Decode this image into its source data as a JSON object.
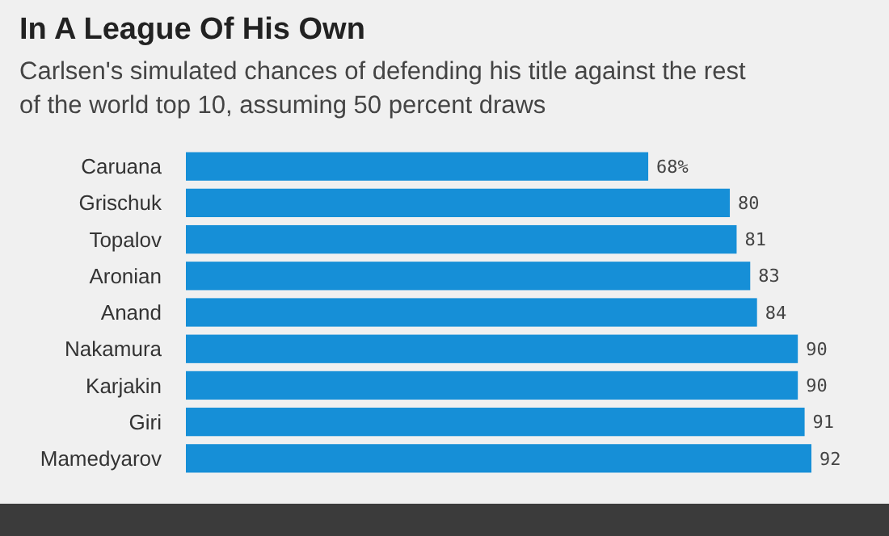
{
  "chart_data": {
    "type": "bar",
    "orientation": "horizontal",
    "title": "In A League Of His Own",
    "subtitle": "Carlsen's simulated chances of defending his title against the rest of the world top 10, assuming 50 percent draws",
    "categories": [
      "Caruana",
      "Grischuk",
      "Topalov",
      "Aronian",
      "Anand",
      "Nakamura",
      "Karjakin",
      "Giri",
      "Mamedyarov"
    ],
    "values": [
      68,
      80,
      81,
      83,
      84,
      90,
      90,
      91,
      92
    ],
    "value_labels": [
      "68%",
      "80",
      "81",
      "83",
      "84",
      "90",
      "90",
      "91",
      "92"
    ],
    "color": "#168fd7",
    "xlim": [
      0,
      92
    ],
    "tick_labels": "y"
  }
}
